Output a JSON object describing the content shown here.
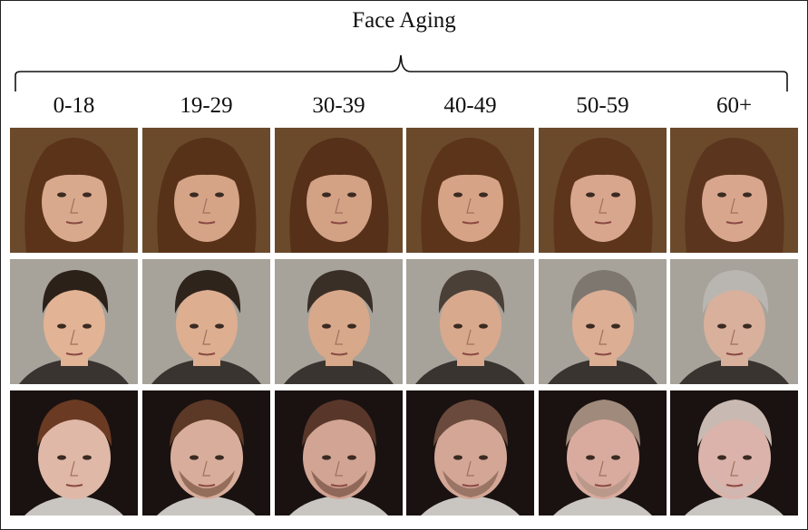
{
  "figure": {
    "title": "Face Aging",
    "age_groups": [
      "0-18",
      "19-29",
      "30-39",
      "40-49",
      "50-59",
      "60+"
    ],
    "rows": [
      {
        "subject": "woman with brown hair and bangs",
        "background": "#6b4a2c",
        "hair": [
          "#5a3319",
          "#583218",
          "#563019",
          "#5b3419",
          "#5d351b",
          "#5b351d"
        ],
        "skin": [
          "#d8a98c",
          "#d5a487",
          "#d3a184",
          "#d6a386",
          "#d8a68c",
          "#d7a68d"
        ],
        "shirt": "#4a3020"
      },
      {
        "subject": "young man aging to gray-haired man",
        "background": "#a7a39b",
        "hair": [
          "#2c2119",
          "#2e241c",
          "#3a2f26",
          "#4a4038",
          "#7d7770",
          "#b9b6b1"
        ],
        "skin": [
          "#e2b394",
          "#ddae90",
          "#d8a88a",
          "#d9a98d",
          "#dcae94",
          "#d8b09c"
        ],
        "shirt": "#3a3430"
      },
      {
        "subject": "boy aging to older man with beard",
        "background": "#1a1210",
        "hair": [
          "#6a3a22",
          "#5c3826",
          "#58372a",
          "#6a4a3c",
          "#a08a7c",
          "#c8bab2"
        ],
        "skin": [
          "#e0b8a8",
          "#d9ad9c",
          "#d2a493",
          "#d4a696",
          "#d9ab9e",
          "#dbb3aa"
        ],
        "shirt": "#c9c6c2"
      }
    ]
  }
}
